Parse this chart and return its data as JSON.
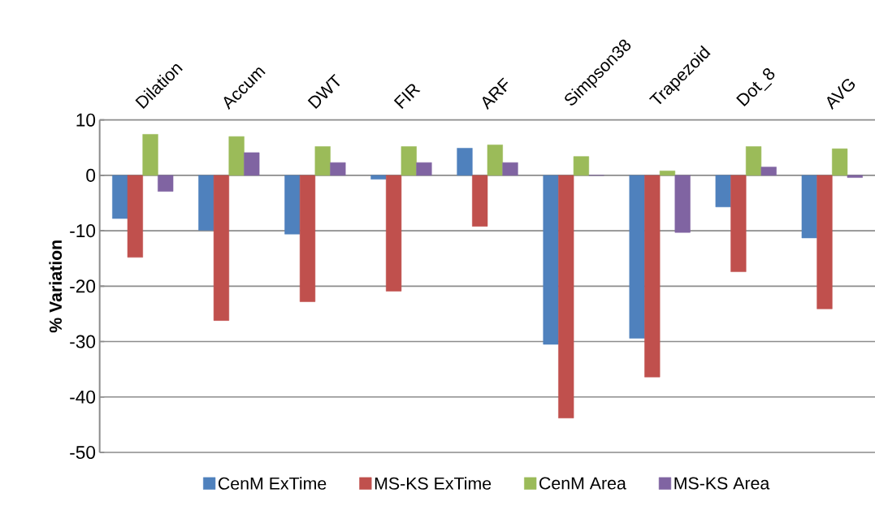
{
  "chart_data": {
    "type": "bar",
    "ylabel": "% Variation",
    "categories": [
      "Dilation",
      "Accum",
      "DWT",
      "FIR",
      "ARF",
      "Simpson38",
      "Trapezoid",
      "Dot_8",
      "AVG"
    ],
    "series": [
      {
        "name": "CenM ExTime",
        "color": "#4f81bd",
        "values": [
          -7.8,
          -9.9,
          -10.6,
          -0.7,
          4.9,
          -30.5,
          -29.4,
          -5.7,
          -11.3
        ]
      },
      {
        "name": "MS-KS ExTime",
        "color": "#c0504d",
        "values": [
          -14.8,
          -26.2,
          -22.8,
          -20.9,
          -9.2,
          -43.8,
          -36.4,
          -17.4,
          -24.1
        ]
      },
      {
        "name": "CenM Area",
        "color": "#9bbb59",
        "values": [
          7.4,
          7.0,
          5.2,
          5.2,
          5.5,
          3.4,
          0.8,
          5.2,
          4.8
        ]
      },
      {
        "name": "MS-KS Area",
        "color": "#8064a2",
        "values": [
          -2.9,
          4.1,
          2.3,
          2.3,
          2.3,
          0,
          -10.3,
          1.5,
          -0.4
        ]
      }
    ],
    "ylim": [
      -50,
      10
    ],
    "yticks": [
      -50,
      -40,
      -30,
      -20,
      -10,
      0,
      10
    ],
    "grid": "y",
    "legend": "bottom"
  }
}
